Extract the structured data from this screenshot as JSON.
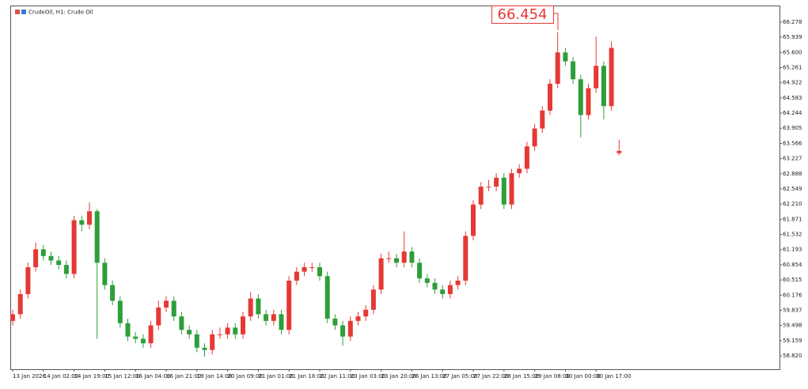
{
  "chart_data": {
    "type": "candlestick",
    "title": "CrudeOil, H1:  Crude Oil",
    "price_label": 66.454,
    "up_color": "#e53935",
    "down_color": "#2e9e3a",
    "categories": [
      "13 Jan 2026",
      null,
      null,
      null,
      "14 Jan 02:00",
      null,
      null,
      null,
      "14 Jan 19:00",
      null,
      null,
      null,
      "15 Jan 12:00",
      null,
      null,
      null,
      "16 Jan 04:00",
      null,
      null,
      null,
      "16 Jan 21:00",
      null,
      null,
      null,
      "19 Jan 14:00",
      null,
      null,
      null,
      "20 Jan 09:00",
      null,
      null,
      null,
      "21 Jan 01:00",
      null,
      null,
      null,
      "21 Jan 18:00",
      null,
      null,
      null,
      "22 Jan 11:00",
      null,
      null,
      null,
      "23 Jan 03:00",
      null,
      null,
      null,
      "23 Jan 20:00",
      null,
      null,
      null,
      "26 Jan 13:00",
      null,
      null,
      null,
      "27 Jan 05:00",
      null,
      null,
      null,
      "27 Jan 22:00",
      null,
      null,
      null,
      "28 Jan 15:00",
      null,
      null,
      null,
      "29 Jan 08:00",
      null,
      null,
      null,
      "30 Jan 00:00",
      null,
      null,
      null,
      "30 Jan 17:00",
      null,
      null,
      null
    ],
    "open": [
      59.6,
      59.75,
      60.2,
      60.8,
      61.2,
      61.05,
      60.95,
      60.85,
      60.65,
      61.85,
      61.75,
      62.05,
      60.9,
      60.4,
      60.05,
      59.55,
      59.25,
      59.2,
      59.1,
      59.5,
      59.9,
      60.05,
      59.7,
      59.4,
      59.3,
      59.0,
      58.95,
      59.3,
      59.3,
      59.45,
      59.3,
      59.7,
      60.1,
      59.75,
      59.6,
      59.75,
      59.4,
      60.5,
      60.7,
      60.8,
      60.8,
      60.6,
      59.65,
      59.5,
      59.25,
      59.6,
      59.7,
      59.85,
      60.3,
      61.0,
      61.0,
      60.9,
      61.15,
      60.9,
      60.55,
      60.45,
      60.3,
      60.2,
      60.4,
      60.5,
      61.5,
      62.2,
      62.6,
      62.6,
      62.8,
      62.2,
      62.9,
      63.0,
      63.5,
      63.9,
      64.3,
      64.9,
      65.6,
      65.4,
      65.0,
      64.2,
      64.8,
      65.3,
      64.4,
      63.35
    ],
    "high": [
      59.85,
      60.3,
      60.9,
      61.35,
      61.3,
      61.15,
      61.05,
      60.95,
      61.95,
      61.95,
      62.25,
      62.1,
      61.0,
      60.5,
      60.15,
      59.65,
      59.35,
      59.3,
      59.6,
      60.05,
      60.15,
      60.15,
      59.8,
      59.5,
      59.4,
      59.1,
      59.4,
      59.45,
      59.55,
      59.55,
      59.8,
      60.25,
      60.2,
      59.85,
      59.85,
      59.85,
      60.6,
      60.8,
      60.9,
      60.9,
      60.9,
      60.7,
      59.75,
      59.6,
      59.7,
      59.8,
      59.95,
      60.4,
      61.1,
      61.15,
      61.1,
      61.6,
      61.25,
      61.0,
      60.65,
      60.55,
      60.4,
      60.5,
      60.6,
      61.6,
      62.3,
      62.7,
      62.75,
      62.9,
      62.9,
      63.0,
      63.1,
      63.6,
      64.0,
      64.4,
      65.0,
      66.05,
      65.7,
      65.5,
      65.1,
      64.9,
      65.95,
      65.4,
      65.85,
      63.65
    ],
    "low": [
      59.5,
      59.65,
      60.1,
      60.7,
      60.95,
      60.85,
      60.75,
      60.55,
      60.55,
      61.6,
      61.65,
      59.2,
      60.3,
      59.95,
      59.45,
      59.15,
      59.1,
      59.0,
      59.0,
      59.4,
      59.8,
      59.6,
      59.3,
      59.2,
      58.9,
      58.8,
      58.85,
      59.2,
      59.2,
      59.2,
      59.2,
      59.6,
      59.65,
      59.5,
      59.5,
      59.3,
      59.3,
      60.4,
      60.6,
      60.7,
      60.5,
      59.55,
      59.4,
      59.05,
      59.15,
      59.5,
      59.6,
      59.75,
      60.2,
      60.9,
      60.8,
      60.8,
      60.8,
      60.45,
      60.35,
      60.2,
      60.1,
      60.1,
      60.3,
      60.4,
      61.4,
      62.1,
      62.5,
      62.5,
      62.1,
      62.1,
      62.8,
      62.9,
      63.4,
      63.8,
      64.2,
      64.8,
      65.3,
      64.9,
      63.7,
      64.1,
      64.7,
      64.1,
      64.3,
      63.3
    ],
    "close": [
      59.75,
      60.2,
      60.8,
      61.2,
      61.05,
      60.95,
      60.85,
      60.65,
      61.85,
      61.75,
      62.05,
      60.9,
      60.4,
      60.05,
      59.55,
      59.25,
      59.2,
      59.1,
      59.5,
      59.9,
      60.05,
      59.7,
      59.4,
      59.3,
      59.0,
      58.95,
      59.3,
      59.3,
      59.45,
      59.3,
      59.7,
      60.1,
      59.75,
      59.6,
      59.75,
      59.4,
      60.5,
      60.7,
      60.8,
      60.8,
      60.6,
      59.65,
      59.5,
      59.25,
      59.6,
      59.7,
      59.85,
      60.3,
      61.0,
      61.0,
      60.9,
      61.15,
      60.9,
      60.55,
      60.45,
      60.3,
      60.2,
      60.4,
      60.5,
      61.5,
      62.2,
      62.6,
      62.6,
      62.8,
      62.2,
      62.9,
      63.0,
      63.5,
      63.9,
      64.3,
      64.9,
      65.6,
      65.4,
      65.0,
      64.2,
      64.8,
      65.3,
      64.4,
      65.7,
      63.4
    ],
    "ylim": [
      58.52,
      66.63
    ],
    "yticks": [
      66.278,
      65.939,
      {
        "value": 65.6,
        "label": "65.600"
      },
      65.261,
      64.922,
      64.583,
      64.244,
      63.905,
      63.566,
      63.227,
      62.888,
      62.549,
      {
        "value": 62.21,
        "label": "62.210"
      },
      61.871,
      61.532,
      61.193,
      60.854,
      60.515,
      60.176,
      59.837,
      59.498,
      59.159,
      {
        "value": 58.82,
        "label": "58.820"
      }
    ]
  }
}
